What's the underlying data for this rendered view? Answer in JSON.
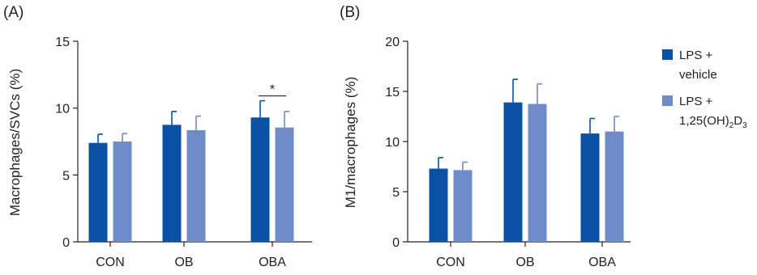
{
  "colors": {
    "vehicle": "#0a51a3",
    "treated": "#6f8cc9",
    "axis": "#222222"
  },
  "legend": {
    "vehicle": [
      "LPS +",
      "vehicle"
    ],
    "treated_line1": "LPS +",
    "treated_line2": {
      "a": "1,25(OH)",
      "sub1": "2",
      "b": "D",
      "sub2": "3"
    }
  },
  "chart_data": [
    {
      "type": "bar",
      "panel": "(A)",
      "ylabel": "Macrophages/SVCs (%)",
      "categories": [
        "CON",
        "OB",
        "OBA"
      ],
      "ylim": [
        0,
        15
      ],
      "yticks": [
        0,
        5,
        10,
        15
      ],
      "series": [
        {
          "name": "LPS + vehicle",
          "values": [
            7.4,
            8.75,
            9.3
          ],
          "errors": [
            0.65,
            1.0,
            1.25
          ]
        },
        {
          "name": "LPS + 1,25(OH)2D3",
          "values": [
            7.5,
            8.35,
            8.55
          ],
          "errors": [
            0.6,
            1.05,
            1.2
          ]
        }
      ],
      "annotations": [
        {
          "text": "*",
          "category": "OBA"
        }
      ]
    },
    {
      "type": "bar",
      "panel": "(B)",
      "ylabel": "M1/macrophages (%)",
      "categories": [
        "CON",
        "OB",
        "OBA"
      ],
      "ylim": [
        0,
        20
      ],
      "yticks": [
        0,
        5,
        10,
        15,
        20
      ],
      "series": [
        {
          "name": "LPS + vehicle",
          "values": [
            7.3,
            13.9,
            10.8
          ],
          "errors": [
            1.1,
            2.3,
            1.5
          ]
        },
        {
          "name": "LPS + 1,25(OH)2D3",
          "values": [
            7.15,
            13.75,
            11.0
          ],
          "errors": [
            0.8,
            2.0,
            1.5
          ]
        }
      ],
      "annotations": []
    }
  ]
}
